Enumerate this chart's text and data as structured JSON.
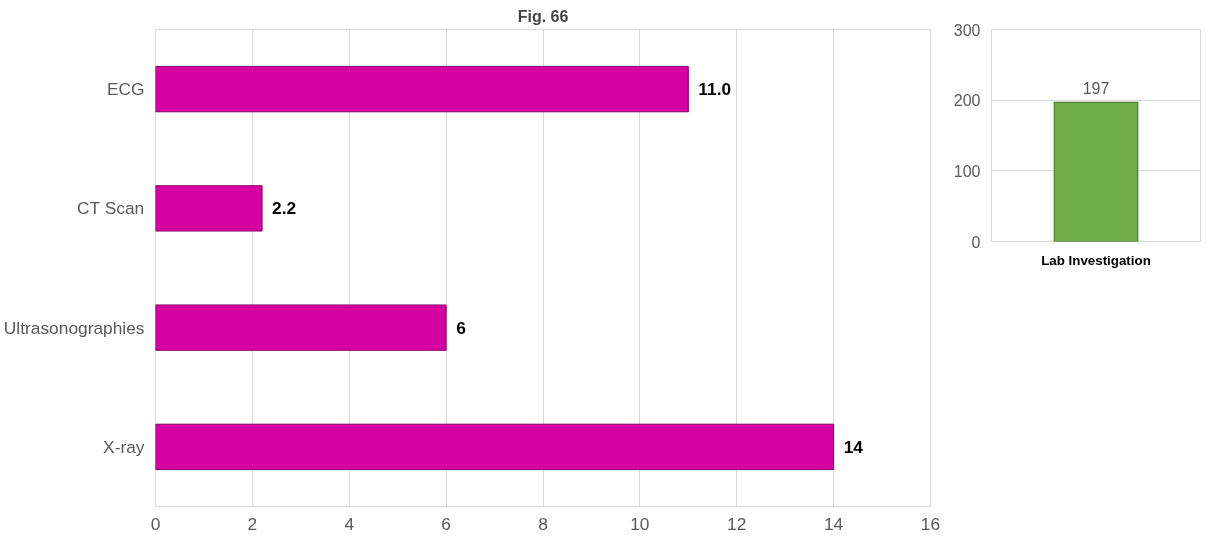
{
  "chart_data": [
    {
      "type": "bar",
      "title": "Fig. 66",
      "orientation": "horizontal",
      "categories": [
        "ECG",
        "CT Scan",
        "Ultrasonographies",
        "X-ray"
      ],
      "values": [
        11.0,
        2.2,
        6,
        14
      ],
      "value_labels": [
        "11.0",
        "2.2",
        "6",
        "14"
      ],
      "color": "#d4009f",
      "xlim": [
        0,
        16
      ],
      "xticks": [
        0,
        2,
        4,
        6,
        8,
        10,
        12,
        14,
        16
      ],
      "grid": "x"
    },
    {
      "type": "bar",
      "categories": [
        "Lab Investigation"
      ],
      "values": [
        197
      ],
      "data_labels": true,
      "color": "#70ad47",
      "ylim": [
        0,
        300
      ],
      "yticks": [
        0,
        100,
        200,
        300
      ],
      "grid": "y"
    }
  ]
}
